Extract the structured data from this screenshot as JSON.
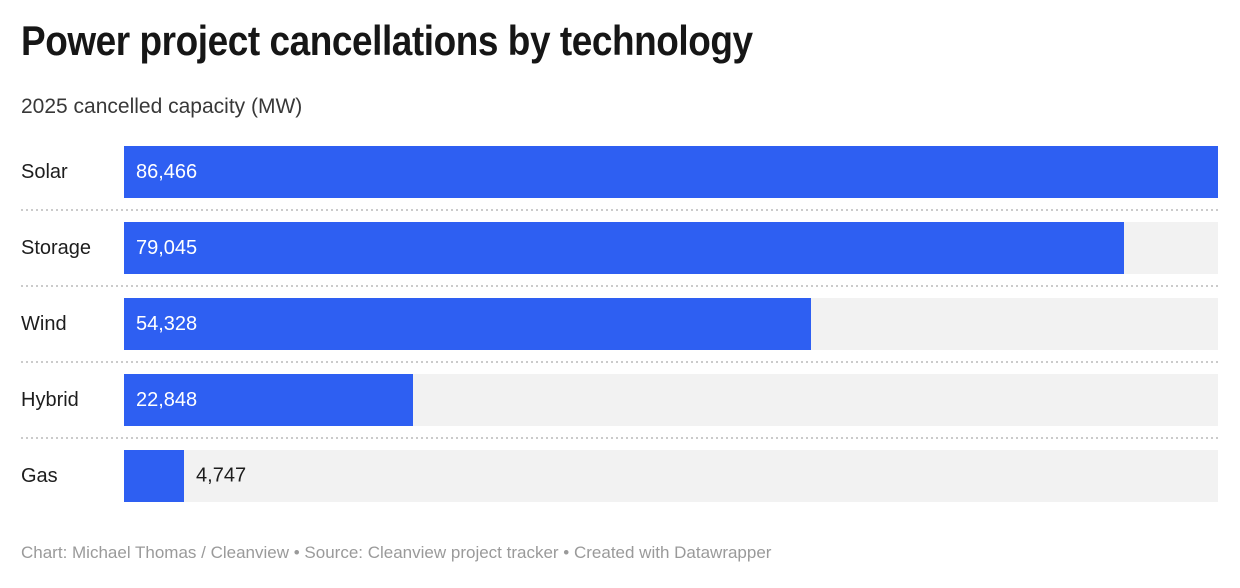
{
  "header": {
    "title": "Power project cancellations by technology",
    "subtitle": "2025 cancelled capacity (MW)"
  },
  "chart_data": {
    "type": "bar",
    "orientation": "horizontal",
    "title": "Power project cancellations by technology",
    "subtitle": "2025 cancelled capacity (MW)",
    "categories": [
      "Solar",
      "Storage",
      "Wind",
      "Hybrid",
      "Gas"
    ],
    "values": [
      86466,
      79045,
      54328,
      22848,
      4747
    ],
    "value_labels": [
      "86,466",
      "79,045",
      "54,328",
      "22,848",
      "4,747"
    ],
    "xlim": [
      0,
      86466
    ],
    "xlabel": "",
    "ylabel": "",
    "grid": false,
    "legend": false,
    "bar_color": "#2e5ff2",
    "track_color": "#f2f2f2",
    "value_label_inside_color": "#ffffff",
    "value_label_outside_color": "#1d1d1d"
  },
  "footer": {
    "text": "Chart: Michael Thomas / Cleanview • Source: Cleanview project tracker • Created with Datawrapper"
  }
}
